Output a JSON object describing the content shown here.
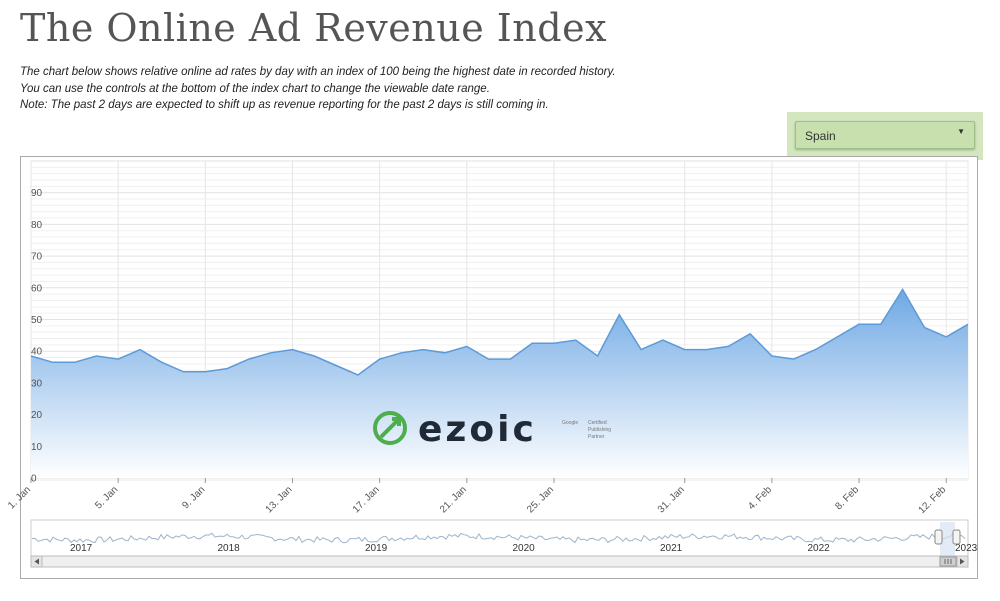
{
  "page": {
    "title": "The Online Ad Revenue Index",
    "description": [
      "The chart below shows relative online ad rates by day with an index of 100 being the highest date in recorded history.",
      "You can use the controls at the bottom of the index chart to change the viewable date range.",
      "Note: The past 2 days are expected to shift up as revenue reporting for the past 2 days is still coming in."
    ]
  },
  "region_select": {
    "value": "Spain"
  },
  "watermark": {
    "brand": "ezoic",
    "badge_lines": [
      "Google",
      "Certified",
      "Publishing",
      "Partner"
    ]
  },
  "colors": {
    "area_top": "#6fa8e4",
    "area_bottom": "#ffffff",
    "line": "#5d9ad8",
    "nav_line": "#9bb4cc",
    "logo_green": "#4cae4c"
  },
  "chart_data": {
    "type": "area",
    "title": "",
    "xlabel": "",
    "ylabel": "",
    "ylim": [
      0,
      100
    ],
    "yticks": [
      0,
      10,
      20,
      30,
      40,
      50,
      60,
      70,
      80,
      90
    ],
    "grid": true,
    "x_tick_labels": [
      "1. Jan",
      "5. Jan",
      "9. Jan",
      "13. Jan",
      "17. Jan",
      "21. Jan",
      "25. Jan",
      "31. Jan",
      "4. Feb",
      "8. Feb",
      "12. Feb"
    ],
    "x_tick_day_index": [
      0,
      4,
      8,
      12,
      16,
      20,
      24,
      30,
      34,
      38,
      42
    ],
    "series": [
      {
        "values": [
          38.5,
          36.5,
          36.5,
          38.5,
          37.5,
          40.5,
          36.5,
          33.5,
          33.5,
          34.5,
          37.5,
          39.5,
          40.5,
          38.5,
          35.5,
          32.5,
          37.5,
          39.5,
          40.5,
          39.5,
          41.5,
          37.5,
          37.5,
          42.5,
          42.5,
          43.5,
          38.5,
          51.5,
          40.5,
          43.5,
          40.5,
          40.5,
          41.5,
          45.5,
          38.5,
          37.5,
          40.5,
          44.5,
          48.5,
          48.5,
          59.5,
          47.5,
          44.5,
          48.5
        ]
      }
    ],
    "navigator": {
      "year_labels": [
        "2017",
        "2018",
        "2019",
        "2020",
        "2021",
        "2022",
        "2023"
      ]
    }
  }
}
